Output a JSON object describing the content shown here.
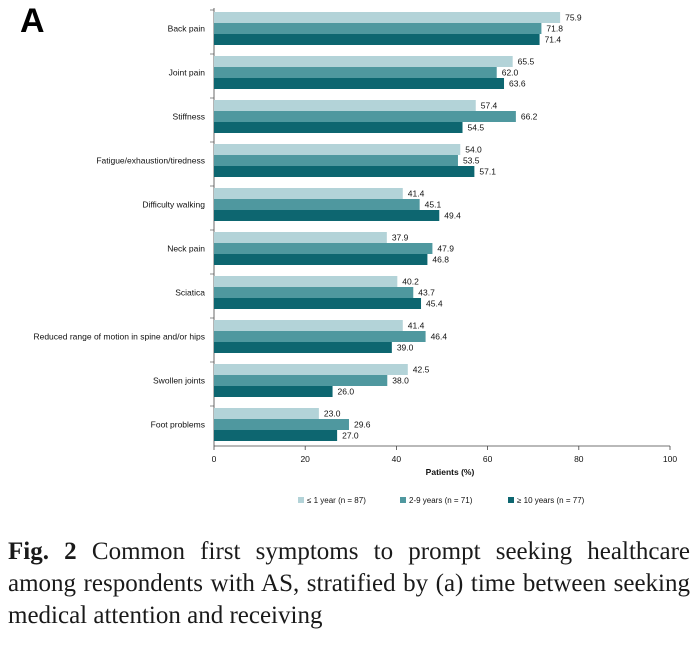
{
  "panel_label": "A",
  "chart_data": {
    "type": "bar",
    "orientation": "horizontal",
    "categories": [
      "Back pain",
      "Joint pain",
      "Stiffness",
      "Fatigue/exhaustion/tiredness",
      "Difficulty walking",
      "Neck pain",
      "Sciatica",
      "Reduced range of motion in spine and/or hips",
      "Swollen joints",
      "Foot problems"
    ],
    "series": [
      {
        "name": "≤ 1 year (n = 87)",
        "color": "#b3d3d8",
        "values": [
          75.9,
          65.5,
          57.4,
          54.0,
          41.4,
          37.9,
          40.2,
          41.4,
          42.5,
          23.0
        ],
        "labels": [
          "75.9",
          "65.5",
          "57.4",
          "54.0",
          "41.4",
          "37.9",
          "40.2",
          "41.4",
          "42.5",
          "23.0"
        ]
      },
      {
        "name": "2-9 years (n = 71)",
        "color": "#4f989f",
        "values": [
          71.8,
          62.0,
          66.2,
          53.5,
          45.1,
          47.9,
          43.7,
          46.4,
          38.0,
          29.6
        ],
        "labels": [
          "71.8",
          "62.0",
          "66.2",
          "53.5",
          "45.1",
          "47.9",
          "43.7",
          "46.4",
          "38.0",
          "29.6"
        ]
      },
      {
        "name": "≥ 10 years (n = 77)",
        "color": "#0d6670",
        "values": [
          71.4,
          63.6,
          54.5,
          57.1,
          49.4,
          46.8,
          45.4,
          39.0,
          26.0,
          27.0
        ],
        "labels": [
          "71.4",
          "63.6",
          "54.5",
          "57.1",
          "49.4",
          "46.8",
          "45.4",
          "39.0",
          "26.0",
          "27.0"
        ]
      }
    ],
    "xlabel": "Patients (%)",
    "xlim": [
      0,
      100
    ],
    "xticks": [
      "0",
      "20",
      "40",
      "60",
      "80",
      "100"
    ],
    "legend_position": "bottom"
  },
  "caption": {
    "label": "Fig. 2",
    "text": " Common first symptoms to prompt seeking healthcare among respondents with AS, stratified by (a) time between seeking medical attention and receiving"
  }
}
